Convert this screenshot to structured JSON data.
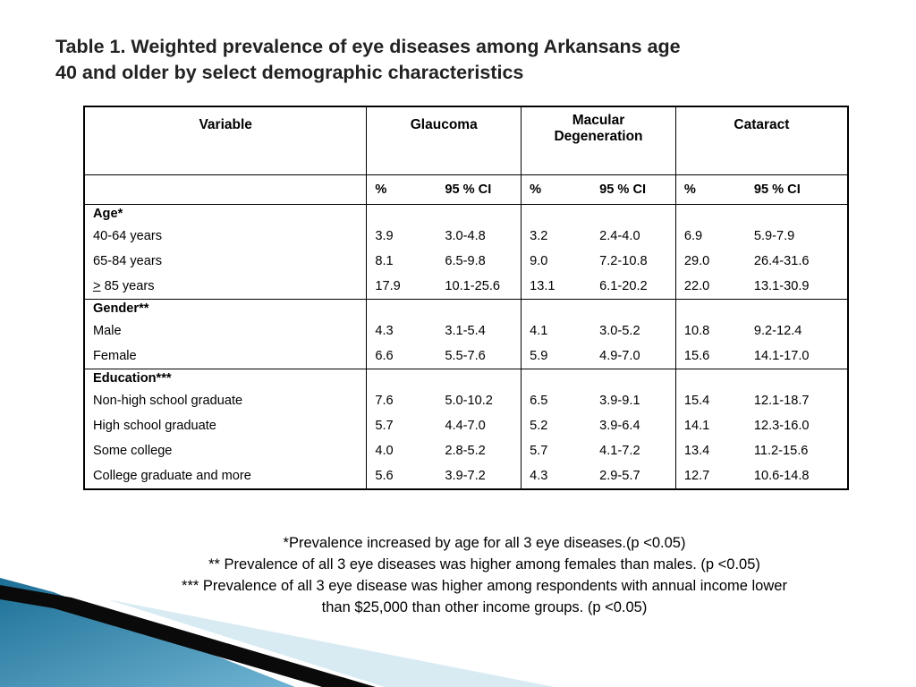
{
  "title": {
    "line1": "Table 1. Weighted prevalence of eye diseases among Arkansans age",
    "line2": "40 and older by select demographic characteristics"
  },
  "table": {
    "headers": {
      "variable": "Variable",
      "glaucoma": "Glaucoma",
      "macular_line1": "Macular",
      "macular_line2": "Degeneration",
      "cataract": "Cataract"
    },
    "sub": {
      "pct": "%",
      "ci": "95 % CI"
    },
    "groups": [
      {
        "heading": "Age*",
        "rows": [
          {
            "label_prefix": "",
            "label": "40-64 years",
            "glaucoma": [
              "3.9",
              "3.0-4.8"
            ],
            "macular": [
              "3.2",
              "2.4-4.0"
            ],
            "cataract": [
              "6.9",
              "5.9-7.9"
            ]
          },
          {
            "label_prefix": "",
            "label": "65-84 years",
            "glaucoma": [
              "8.1",
              "6.5-9.8"
            ],
            "macular": [
              "9.0",
              "7.2-10.8"
            ],
            "cataract": [
              "29.0",
              "26.4-31.6"
            ]
          },
          {
            "label_prefix": ">",
            "label": " 85 years",
            "glaucoma": [
              "17.9",
              "10.1-25.6"
            ],
            "macular": [
              "13.1",
              "6.1-20.2"
            ],
            "cataract": [
              "22.0",
              "13.1-30.9"
            ]
          }
        ]
      },
      {
        "heading": "Gender**",
        "rows": [
          {
            "label_prefix": "",
            "label": "Male",
            "glaucoma": [
              "4.3",
              "3.1-5.4"
            ],
            "macular": [
              "4.1",
              "3.0-5.2"
            ],
            "cataract": [
              "10.8",
              "9.2-12.4"
            ]
          },
          {
            "label_prefix": "",
            "label": "Female",
            "glaucoma": [
              "6.6",
              "5.5-7.6"
            ],
            "macular": [
              "5.9",
              "4.9-7.0"
            ],
            "cataract": [
              "15.6",
              "14.1-17.0"
            ]
          }
        ]
      },
      {
        "heading": "Education***",
        "rows": [
          {
            "label_prefix": "",
            "label": "Non-high school graduate",
            "glaucoma": [
              "7.6",
              "5.0-10.2"
            ],
            "macular": [
              "6.5",
              "3.9-9.1"
            ],
            "cataract": [
              "15.4",
              "12.1-18.7"
            ]
          },
          {
            "label_prefix": "",
            "label": "High school graduate",
            "glaucoma": [
              "5.7",
              "4.4-7.0"
            ],
            "macular": [
              "5.2",
              "3.9-6.4"
            ],
            "cataract": [
              "14.1",
              "12.3-16.0"
            ]
          },
          {
            "label_prefix": "",
            "label": "Some college",
            "glaucoma": [
              "4.0",
              "2.8-5.2"
            ],
            "macular": [
              "5.7",
              "4.1-7.2"
            ],
            "cataract": [
              "13.4",
              "11.2-15.6"
            ]
          },
          {
            "label_prefix": "",
            "label": "College graduate and more",
            "glaucoma": [
              "5.6",
              "3.9-7.2"
            ],
            "macular": [
              "4.3",
              "2.9-5.7"
            ],
            "cataract": [
              "12.7",
              "10.6-14.8"
            ]
          }
        ]
      }
    ]
  },
  "footnotes": [
    "*Prevalence increased by age for all 3 eye diseases.(p <0.05)",
    "** Prevalence of all 3 eye diseases was higher among females than males. (p <0.05)",
    "*** Prevalence of all 3 eye disease was higher among respondents with annual income lower",
    "than $25,000 than other income groups. (p <0.05)"
  ],
  "colors": {
    "deco_blue_light": "#6fb3d2",
    "deco_blue_dark": "#1c6f96",
    "deco_black": "#0a0a0a",
    "deco_pale": "#d8ebf3"
  }
}
